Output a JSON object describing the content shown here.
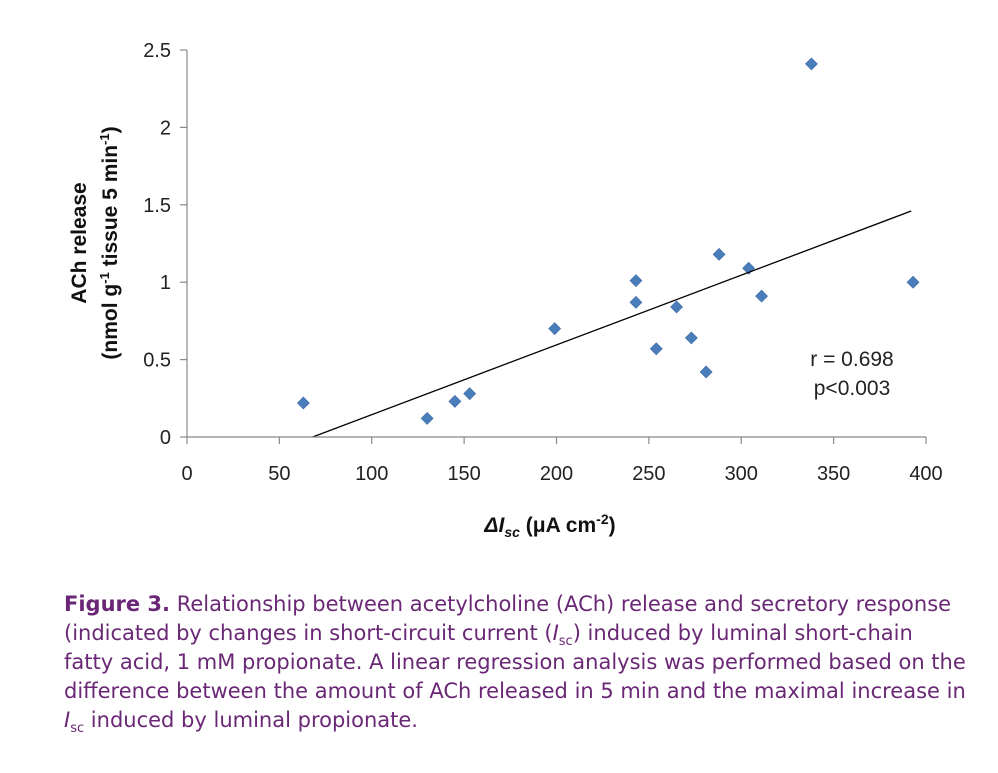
{
  "chart_data": {
    "type": "scatter",
    "xlabel_prefix": "ΔI",
    "xlabel_sub": "sc",
    "xlabel_suffix": " (μA cm",
    "xlabel_sup": "-2",
    "xlabel_close": ")",
    "ylabel_line1": "ACh release",
    "ylabel_line2_a": "(nmol g",
    "ylabel_line2_sup1": "-1",
    "ylabel_line2_b": " tissue 5 min",
    "ylabel_line2_sup2": "-1",
    "ylabel_line2_c": ")",
    "xlim": [
      0,
      400
    ],
    "ylim": [
      0,
      2.5
    ],
    "x_ticks": [
      "0",
      "50",
      "100",
      "150",
      "200",
      "250",
      "300",
      "350",
      "400"
    ],
    "y_ticks": [
      "0",
      "0.5",
      "1",
      "1.5",
      "2",
      "2.5"
    ],
    "points": [
      {
        "x": 63,
        "y": 0.22
      },
      {
        "x": 130,
        "y": 0.12
      },
      {
        "x": 145,
        "y": 0.23
      },
      {
        "x": 153,
        "y": 0.28
      },
      {
        "x": 199,
        "y": 0.7
      },
      {
        "x": 243,
        "y": 1.01
      },
      {
        "x": 243,
        "y": 0.87
      },
      {
        "x": 254,
        "y": 0.57
      },
      {
        "x": 265,
        "y": 0.84
      },
      {
        "x": 273,
        "y": 0.64
      },
      {
        "x": 281,
        "y": 0.42
      },
      {
        "x": 288,
        "y": 1.18
      },
      {
        "x": 304,
        "y": 1.09
      },
      {
        "x": 311,
        "y": 0.91
      },
      {
        "x": 338,
        "y": 2.41
      },
      {
        "x": 393,
        "y": 1.0
      }
    ],
    "trendline": {
      "x_start": 68,
      "y_start": 0,
      "x_end": 392,
      "y_end": 1.46
    },
    "annotation_r": "r = 0.698",
    "annotation_p": "p<0.003",
    "grid": false,
    "legend": "none",
    "point_color": "#4a7ebb"
  },
  "caption": {
    "label": "Figure 3.",
    "line1": " Relationship between acetylcholine (ACh) release and secretory response",
    "line2_a": "(indicated by changes in short-circuit current (",
    "line2_i": "I",
    "line2_sub": "sc",
    "line2_b": ") induced by luminal short-chain",
    "line3": "fatty acid, 1 mM propionate. A linear regression analysis was performed based on the",
    "line4": "difference between the amount of ACh released in 5 min and the maximal increase in",
    "line5_i": "I",
    "line5_sub": "sc",
    "line5_b": " induced by luminal propionate.",
    "color": "#6a2775"
  }
}
